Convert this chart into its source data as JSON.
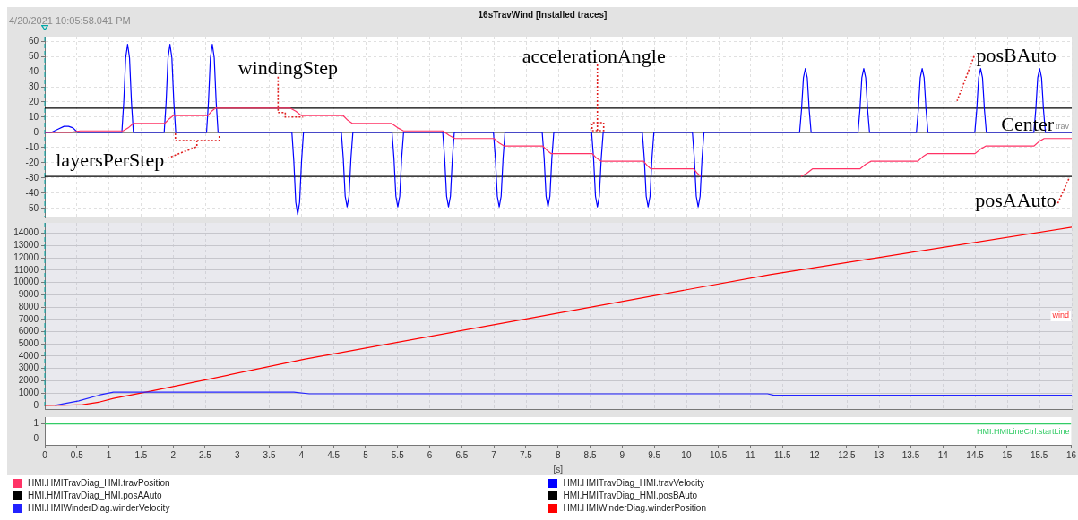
{
  "chart_data": [
    {
      "type": "line",
      "title": "16sTravWind [Installed traces]",
      "subtitle": "4/20/2021 10:05:58.041 PM",
      "xlim": [
        0,
        16
      ],
      "xticks": [
        0,
        0.5,
        1,
        1.5,
        2,
        2.5,
        3,
        3.5,
        4,
        4.5,
        5,
        5.5,
        6,
        6.5,
        7,
        7.5,
        8,
        8.5,
        9,
        9.5,
        10,
        10.5,
        11,
        11.5,
        12,
        12.5,
        13,
        13.5,
        14,
        14.5,
        15,
        15.5,
        16
      ],
      "ylim": [
        -56,
        63
      ],
      "yticks": [
        -50,
        -40,
        -30,
        -20,
        -10,
        0,
        10,
        20,
        30,
        40,
        50,
        60
      ],
      "tick_labels": "y",
      "grid": true,
      "legend": "bottom",
      "marker": "none",
      "series": [
        {
          "name": "HMI.HMITravDiag_HMI.travPosition",
          "color": "#ff3366",
          "x": [
            0,
            0.4,
            0.55,
            1.22,
            1.3,
            1.38,
            1.87,
            1.94,
            2.0,
            2.54,
            2.6,
            2.66,
            3.82,
            3.91,
            4.0,
            4.65,
            4.72,
            4.79,
            5.4,
            5.5,
            5.59,
            6.2,
            6.3,
            6.39,
            7.0,
            7.08,
            7.16,
            7.76,
            7.83,
            7.89,
            8.53,
            8.6,
            8.67,
            9.33,
            9.39,
            9.44,
            10.11,
            10.17,
            10.22,
            11.0,
            11.78,
            11.87,
            11.96,
            12.7,
            12.79,
            12.87,
            13.6,
            13.68,
            13.75,
            14.49,
            14.58,
            14.66,
            15.41,
            15.49,
            15.57,
            16
          ],
          "values": [
            0,
            0,
            1,
            1,
            3,
            6,
            6,
            9,
            11,
            11,
            14,
            16,
            16,
            14,
            11,
            11,
            8,
            6,
            6,
            3,
            1,
            1,
            -2,
            -4,
            -4,
            -7,
            -9,
            -9,
            -12,
            -14,
            -14,
            -17,
            -19,
            -19,
            -22,
            -24,
            -24,
            -27,
            -29,
            null,
            -29,
            -27,
            -24,
            -24,
            -21,
            -19,
            -19,
            -16,
            -14,
            -14,
            -11,
            -9,
            -9,
            -6,
            -4,
            -4
          ]
        },
        {
          "name": "HMI.HMITravDiag_HMI.travVelocity",
          "color": "#0000ff",
          "x": [
            0,
            0.1,
            0.2,
            0.3,
            0.37,
            0.44,
            0.51,
            1.2,
            1.23,
            1.26,
            1.29,
            1.32,
            1.35,
            1.38,
            1.86,
            1.89,
            1.92,
            1.95,
            1.98,
            2.01,
            2.04,
            2.52,
            2.55,
            2.58,
            2.61,
            2.64,
            2.67,
            2.7,
            3.85,
            3.88,
            3.91,
            3.94,
            3.97,
            4.0,
            4.03,
            4.62,
            4.65,
            4.68,
            4.71,
            4.74,
            4.77,
            4.8,
            5.41,
            5.44,
            5.47,
            5.5,
            5.53,
            5.56,
            5.59,
            6.2,
            6.23,
            6.26,
            6.29,
            6.32,
            6.35,
            6.38,
            6.99,
            7.02,
            7.05,
            7.08,
            7.11,
            7.14,
            7.17,
            7.75,
            7.78,
            7.81,
            7.84,
            7.87,
            7.9,
            7.93,
            8.52,
            8.55,
            8.58,
            8.61,
            8.64,
            8.67,
            8.7,
            9.31,
            9.34,
            9.37,
            9.4,
            9.43,
            9.46,
            9.49,
            10.09,
            10.12,
            10.15,
            10.18,
            10.21,
            10.24,
            10.27,
            11.76,
            11.79,
            11.82,
            11.85,
            11.88,
            11.91,
            11.94,
            12.67,
            12.7,
            12.73,
            12.76,
            12.79,
            12.82,
            12.85,
            13.58,
            13.61,
            13.64,
            13.67,
            13.7,
            13.73,
            13.76,
            14.49,
            14.52,
            14.55,
            14.58,
            14.61,
            14.64,
            14.67,
            15.41,
            15.44,
            15.47,
            15.5,
            15.53,
            15.56,
            15.59,
            16
          ],
          "values": [
            0,
            0,
            2,
            4,
            4,
            3,
            0,
            0,
            20,
            49,
            58,
            49,
            20,
            0,
            0,
            20,
            49,
            58,
            49,
            20,
            0,
            0,
            20,
            49,
            58,
            49,
            20,
            0,
            0,
            -19,
            -46,
            -54,
            -46,
            -19,
            0,
            0,
            -17,
            -42,
            -49,
            -42,
            -17,
            0,
            0,
            -17,
            -42,
            -49,
            -42,
            -17,
            0,
            0,
            -17,
            -42,
            -49,
            -42,
            -17,
            0,
            0,
            -17,
            -42,
            -49,
            -42,
            -17,
            0,
            0,
            -17,
            -42,
            -49,
            -42,
            -17,
            0,
            0,
            -17,
            -42,
            -49,
            -42,
            -17,
            0,
            0,
            -17,
            -42,
            -49,
            -42,
            -17,
            0,
            0,
            -17,
            -42,
            -49,
            -42,
            -17,
            0,
            0,
            15,
            36,
            42,
            36,
            15,
            0,
            0,
            15,
            36,
            42,
            36,
            15,
            0,
            0,
            15,
            36,
            42,
            36,
            15,
            0,
            0,
            15,
            36,
            42,
            36,
            15,
            0,
            0,
            15,
            36,
            42,
            36,
            15,
            0,
            0
          ]
        },
        {
          "name": "HMI.HMITravDiag_HMI.posAAuto",
          "color": "#000000",
          "x": [
            0,
            16
          ],
          "values": [
            -29,
            -29
          ]
        },
        {
          "name": "HMI.HMITravDiag_HMI.posBAuto",
          "color": "#000000",
          "x": [
            0,
            16
          ],
          "values": [
            16,
            16
          ]
        }
      ],
      "ref_lines": [
        {
          "axis": "y",
          "value": 0,
          "label": "Center",
          "color": "#000000"
        },
        {
          "axis": "x",
          "value": 0,
          "color": "#00a8a8",
          "line_style": "dashed"
        }
      ],
      "annotations": [
        {
          "text": "windingStep",
          "x": 3.9,
          "y": 16
        },
        {
          "text": "layersPerStep",
          "x": 2.3,
          "y": 0
        },
        {
          "text": "accelerationAngle",
          "x": 8.61,
          "y": 0
        },
        {
          "text": "posBAuto",
          "x": 14.2,
          "y": 16
        },
        {
          "text": "posAAuto",
          "x": 15.95,
          "y": -29
        },
        "trav"
      ]
    },
    {
      "type": "line",
      "xlim": [
        0,
        16
      ],
      "xticks": [
        0,
        0.5,
        1,
        1.5,
        2,
        2.5,
        3,
        3.5,
        4,
        4.5,
        5,
        5.5,
        6,
        6.5,
        7,
        7.5,
        8,
        8.5,
        9,
        9.5,
        10,
        10.5,
        11,
        11.5,
        12,
        12.5,
        13,
        13.5,
        14,
        14.5,
        15,
        15.5,
        16
      ],
      "ylim": [
        -300,
        14850
      ],
      "yticks": [
        0,
        1000,
        2000,
        3000,
        4000,
        5000,
        6000,
        7000,
        8000,
        9000,
        10000,
        11000,
        12000,
        13000,
        14000
      ],
      "tick_labels": "y",
      "grid": true,
      "legend": "bottom",
      "marker": "none",
      "series": [
        {
          "name": "HMI.HMIWinderDiag.winderVelocity",
          "color": "#2222ff",
          "x": [
            0.16,
            0.53,
            0.86,
            1.07,
            3.88,
            4.12,
            11.26,
            11.36,
            16
          ],
          "values": [
            0,
            370,
            850,
            1080,
            1080,
            940,
            940,
            820,
            820
          ]
        },
        {
          "name": "HMI.HMIWinderDiag.winderPosition",
          "color": "#ff0000",
          "x": [
            0,
            0.3,
            0.59,
            0.86,
            1.07,
            1.66,
            4.04,
            7.65,
            11.3,
            16
          ],
          "values": [
            0,
            10,
            60,
            280,
            560,
            1160,
            3750,
            7180,
            10640,
            14490
          ]
        }
      ],
      "ref_lines": [
        {
          "axis": "x",
          "value": 0,
          "color": "#00a8a8",
          "line_style": "dashed"
        }
      ],
      "annotations": [
        "wind"
      ]
    },
    {
      "type": "line",
      "xlim": [
        0,
        16
      ],
      "xticks": [
        0,
        0.5,
        1,
        1.5,
        2,
        2.5,
        3,
        3.5,
        4,
        4.5,
        5,
        5.5,
        6,
        6.5,
        7,
        7.5,
        8,
        8.5,
        9,
        9.5,
        10,
        10.5,
        11,
        11.5,
        12,
        12.5,
        13,
        13.5,
        14,
        14.5,
        15,
        15.5,
        16
      ],
      "xlabel": "[s]",
      "ylim": [
        -0.4,
        1.45
      ],
      "yticks": [
        0,
        1
      ],
      "legend": false,
      "marker": "none",
      "series": [
        {
          "name": "HMI.HMILineCtrl.startLine",
          "color": "#33cc66",
          "x": [
            0,
            16
          ],
          "values": [
            1,
            1
          ]
        }
      ]
    }
  ]
}
